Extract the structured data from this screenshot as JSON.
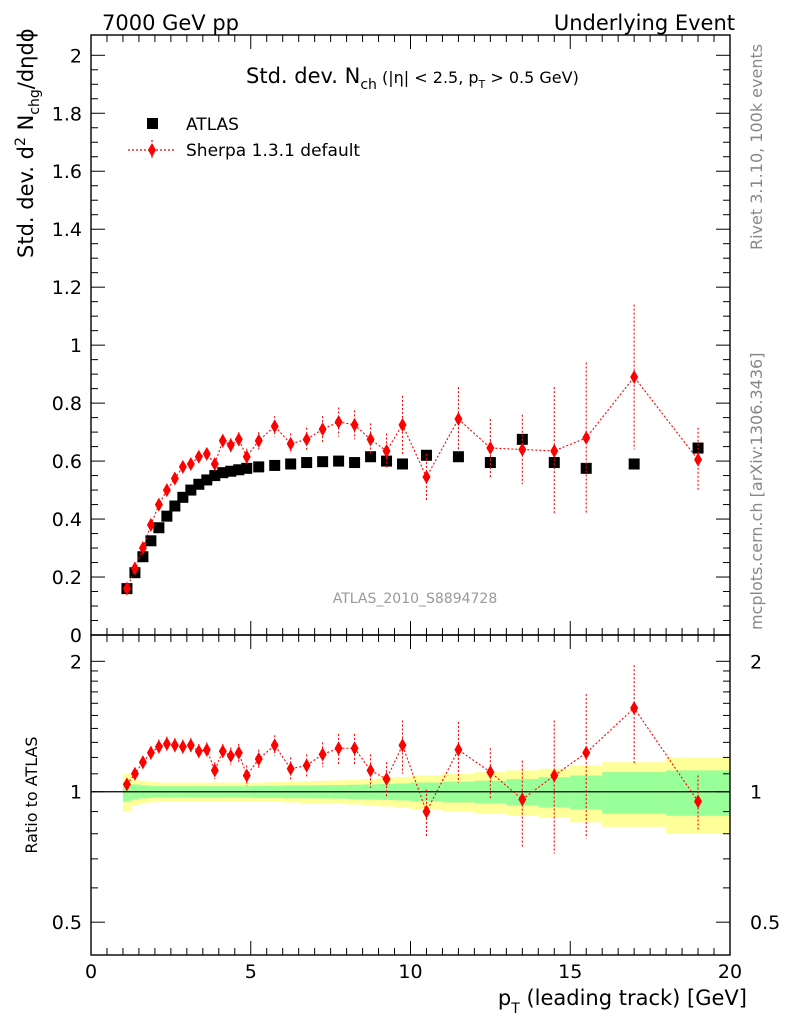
{
  "header": {
    "left": "7000 GeV pp",
    "right": "Underlying Event"
  },
  "side_labels": {
    "rivet": "Rivet 3.1.10,  100k events",
    "mcplots": "mcplots.cern.ch [arXiv:1306.3436]"
  },
  "analysis_id": "ATLAS_2010_S8894728",
  "chart_data": [
    {
      "type": "scatter",
      "title_main": "Std. dev. N",
      "title_sub": "ch",
      "title_rest": " (|η| < 2.5, p",
      "title_sub2": "T",
      "title_end": " > 0.5 GeV)",
      "ylabel_pre": "Std. dev. d",
      "ylabel_sup": "2",
      "ylabel_mid": " N",
      "ylabel_sub": "chg",
      "ylabel_post": "/dηdϕ",
      "xlim": [
        0,
        20
      ],
      "ylim": [
        0,
        2.07
      ],
      "yticks": [
        "0",
        "0.2",
        "0.4",
        "0.6",
        "0.8",
        "1",
        "1.2",
        "1.4",
        "1.6",
        "1.8",
        "2"
      ],
      "legend_position": "top-left",
      "series": [
        {
          "name": "ATLAS",
          "color": "#000000",
          "marker": "square",
          "x": [
            1.125,
            1.375,
            1.625,
            1.875,
            2.125,
            2.375,
            2.625,
            2.875,
            3.125,
            3.375,
            3.625,
            3.875,
            4.125,
            4.375,
            4.625,
            4.875,
            5.25,
            5.75,
            6.25,
            6.75,
            7.25,
            7.75,
            8.25,
            8.75,
            9.25,
            9.75,
            10.5,
            11.5,
            12.5,
            13.5,
            14.5,
            15.5,
            17.0,
            19.0
          ],
          "y": [
            0.16,
            0.215,
            0.27,
            0.325,
            0.37,
            0.41,
            0.445,
            0.475,
            0.5,
            0.52,
            0.535,
            0.55,
            0.56,
            0.565,
            0.57,
            0.575,
            0.58,
            0.585,
            0.59,
            0.595,
            0.598,
            0.6,
            0.595,
            0.615,
            0.6,
            0.59,
            0.62,
            0.615,
            0.595,
            0.675,
            0.595,
            0.575,
            0.59,
            0.645
          ]
        },
        {
          "name": "Sherpa 1.3.1 default",
          "color": "#ff0000",
          "marker": "diamond",
          "x": [
            1.125,
            1.375,
            1.625,
            1.875,
            2.125,
            2.375,
            2.625,
            2.875,
            3.125,
            3.375,
            3.625,
            3.875,
            4.125,
            4.375,
            4.625,
            4.875,
            5.25,
            5.75,
            6.25,
            6.75,
            7.25,
            7.75,
            8.25,
            8.75,
            9.25,
            9.75,
            10.5,
            11.5,
            12.5,
            13.5,
            14.5,
            15.5,
            17.0,
            19.0
          ],
          "y": [
            0.16,
            0.23,
            0.3,
            0.38,
            0.45,
            0.5,
            0.54,
            0.58,
            0.59,
            0.615,
            0.625,
            0.59,
            0.67,
            0.655,
            0.675,
            0.615,
            0.67,
            0.72,
            0.66,
            0.675,
            0.71,
            0.735,
            0.725,
            0.675,
            0.635,
            0.725,
            0.545,
            0.745,
            0.645,
            0.64,
            0.635,
            0.68,
            0.89,
            0.605
          ],
          "yerr": [
            0.008,
            0.01,
            0.012,
            0.014,
            0.015,
            0.016,
            0.016,
            0.017,
            0.017,
            0.018,
            0.018,
            0.02,
            0.022,
            0.024,
            0.025,
            0.028,
            0.03,
            0.035,
            0.035,
            0.04,
            0.045,
            0.05,
            0.05,
            0.055,
            0.06,
            0.1,
            0.08,
            0.11,
            0.1,
            0.12,
            0.22,
            0.26,
            0.25,
            0.11
          ]
        }
      ]
    },
    {
      "type": "scatter",
      "ylabel": "Ratio to ATLAS",
      "xlabel_pre": "p",
      "xlabel_sub": "T",
      "xlabel_post": " (leading track) [GeV]",
      "xlim": [
        0,
        20
      ],
      "xticks": [
        "0",
        "5",
        "10",
        "15",
        "20"
      ],
      "yscale": "log",
      "ylim": [
        0.42,
        2.3
      ],
      "yticks": [
        "0.5",
        "1",
        "2"
      ],
      "reference_line": 1,
      "bands": {
        "x_edges": [
          1.0,
          1.25,
          1.5,
          1.75,
          2.0,
          2.25,
          2.5,
          2.75,
          3.0,
          3.25,
          3.5,
          3.75,
          4.0,
          4.25,
          4.5,
          4.75,
          5.0,
          5.5,
          6.0,
          6.5,
          7.0,
          7.5,
          8.0,
          8.5,
          9.0,
          9.5,
          10.0,
          11.0,
          12.0,
          13.0,
          14.0,
          15.0,
          16.0,
          18.0,
          20.0
        ],
        "inner": [
          0.05,
          0.04,
          0.035,
          0.032,
          0.03,
          0.03,
          0.03,
          0.03,
          0.03,
          0.03,
          0.03,
          0.03,
          0.03,
          0.03,
          0.03,
          0.03,
          0.032,
          0.032,
          0.034,
          0.034,
          0.035,
          0.036,
          0.038,
          0.04,
          0.042,
          0.045,
          0.05,
          0.055,
          0.06,
          0.07,
          0.08,
          0.09,
          0.11,
          0.12
        ],
        "outer": [
          0.1,
          0.07,
          0.06,
          0.055,
          0.05,
          0.05,
          0.05,
          0.05,
          0.05,
          0.05,
          0.05,
          0.05,
          0.05,
          0.05,
          0.05,
          0.05,
          0.05,
          0.052,
          0.055,
          0.058,
          0.06,
          0.062,
          0.065,
          0.07,
          0.075,
          0.08,
          0.09,
          0.1,
          0.11,
          0.12,
          0.13,
          0.15,
          0.17,
          0.2
        ],
        "inner_color": "#99ff99",
        "outer_color": "#ffff99"
      },
      "series": [
        {
          "name": "Sherpa 1.3.1 default",
          "color": "#ff0000",
          "marker": "diamond",
          "x": [
            1.125,
            1.375,
            1.625,
            1.875,
            2.125,
            2.375,
            2.625,
            2.875,
            3.125,
            3.375,
            3.625,
            3.875,
            4.125,
            4.375,
            4.625,
            4.875,
            5.25,
            5.75,
            6.25,
            6.75,
            7.25,
            7.75,
            8.25,
            8.75,
            9.25,
            9.75,
            10.5,
            11.5,
            12.5,
            13.5,
            14.5,
            15.5,
            17.0,
            19.0
          ],
          "y": [
            1.04,
            1.1,
            1.17,
            1.23,
            1.27,
            1.29,
            1.28,
            1.27,
            1.28,
            1.24,
            1.25,
            1.12,
            1.24,
            1.21,
            1.23,
            1.09,
            1.19,
            1.28,
            1.13,
            1.15,
            1.22,
            1.26,
            1.26,
            1.12,
            1.07,
            1.28,
            0.9,
            1.25,
            1.11,
            0.96,
            1.09,
            1.23,
            1.56,
            0.95
          ],
          "yerr": [
            0.03,
            0.035,
            0.04,
            0.045,
            0.05,
            0.05,
            0.05,
            0.05,
            0.05,
            0.05,
            0.05,
            0.05,
            0.05,
            0.055,
            0.06,
            0.06,
            0.06,
            0.07,
            0.07,
            0.07,
            0.08,
            0.1,
            0.1,
            0.1,
            0.1,
            0.18,
            0.11,
            0.2,
            0.15,
            0.22,
            0.37,
            0.45,
            0.4,
            0.14
          ]
        }
      ]
    }
  ]
}
